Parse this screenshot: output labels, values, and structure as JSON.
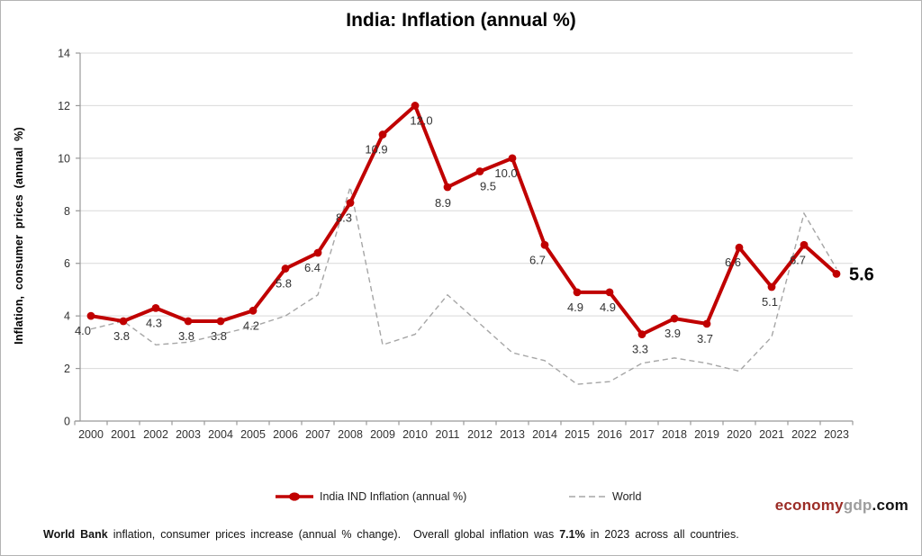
{
  "title": "India: Inflation (annual %)",
  "y_axis_title": "Inflation, consumer prices (annual %)",
  "legend": {
    "india": "India IND Inflation (annual %)",
    "world": "World"
  },
  "footer": {
    "bold1": "World Bank",
    "text1": "inflation, consumer prices increase (annual % change).",
    "text2": "Overall global inflation was",
    "bold2": "7.1%",
    "text3": "in 2023 across all countries."
  },
  "logo": {
    "part1": "economy",
    "part2": "gdp",
    "part3": ".com"
  },
  "colors": {
    "india_line": "#C00000",
    "world_line": "#A6A6A6",
    "gridline": "#D9D9D9",
    "axis": "#999999",
    "tick_label": "#333333",
    "data_label": "#333333",
    "final_label": "#000000"
  },
  "chart_data": {
    "type": "line",
    "title": "India: Inflation (annual %)",
    "xlabel": "",
    "ylabel": "Inflation, consumer prices (annual %)",
    "x": [
      2000,
      2001,
      2002,
      2003,
      2004,
      2005,
      2006,
      2007,
      2008,
      2009,
      2010,
      2011,
      2012,
      2013,
      2014,
      2015,
      2016,
      2017,
      2018,
      2019,
      2020,
      2021,
      2022,
      2023
    ],
    "series": [
      {
        "name": "India IND Inflation (annual %)",
        "style": "solid",
        "marker": true,
        "values": [
          4.0,
          3.8,
          4.3,
          3.8,
          3.8,
          4.2,
          5.8,
          6.4,
          8.3,
          10.9,
          12.0,
          8.9,
          9.5,
          10.0,
          6.7,
          4.9,
          4.9,
          3.3,
          3.9,
          3.7,
          6.6,
          5.1,
          6.7,
          5.6
        ],
        "labels": [
          "4.0",
          "3.8",
          "4.3",
          "3.8",
          "3.8",
          "4.2",
          "5.8",
          "6.4",
          "8.3",
          "10.9",
          "12.0",
          "8.9",
          "9.5",
          "10.0",
          "6.7",
          "4.9",
          "4.9",
          "3.3",
          "3.9",
          "3.7",
          "6.6",
          "5.1",
          "6.7",
          "5.6"
        ]
      },
      {
        "name": "World",
        "style": "dashed",
        "marker": false,
        "values": [
          3.5,
          3.8,
          2.9,
          3.0,
          3.3,
          3.6,
          4.0,
          4.8,
          8.9,
          2.9,
          3.3,
          4.8,
          3.7,
          2.6,
          2.3,
          1.4,
          1.5,
          2.2,
          2.4,
          2.2,
          1.9,
          3.2,
          7.9,
          5.8
        ]
      }
    ],
    "ylim": [
      0,
      14
    ],
    "ytick_step": 2,
    "grid": true,
    "legend_position": "bottom",
    "final_point_label": "5.6"
  }
}
